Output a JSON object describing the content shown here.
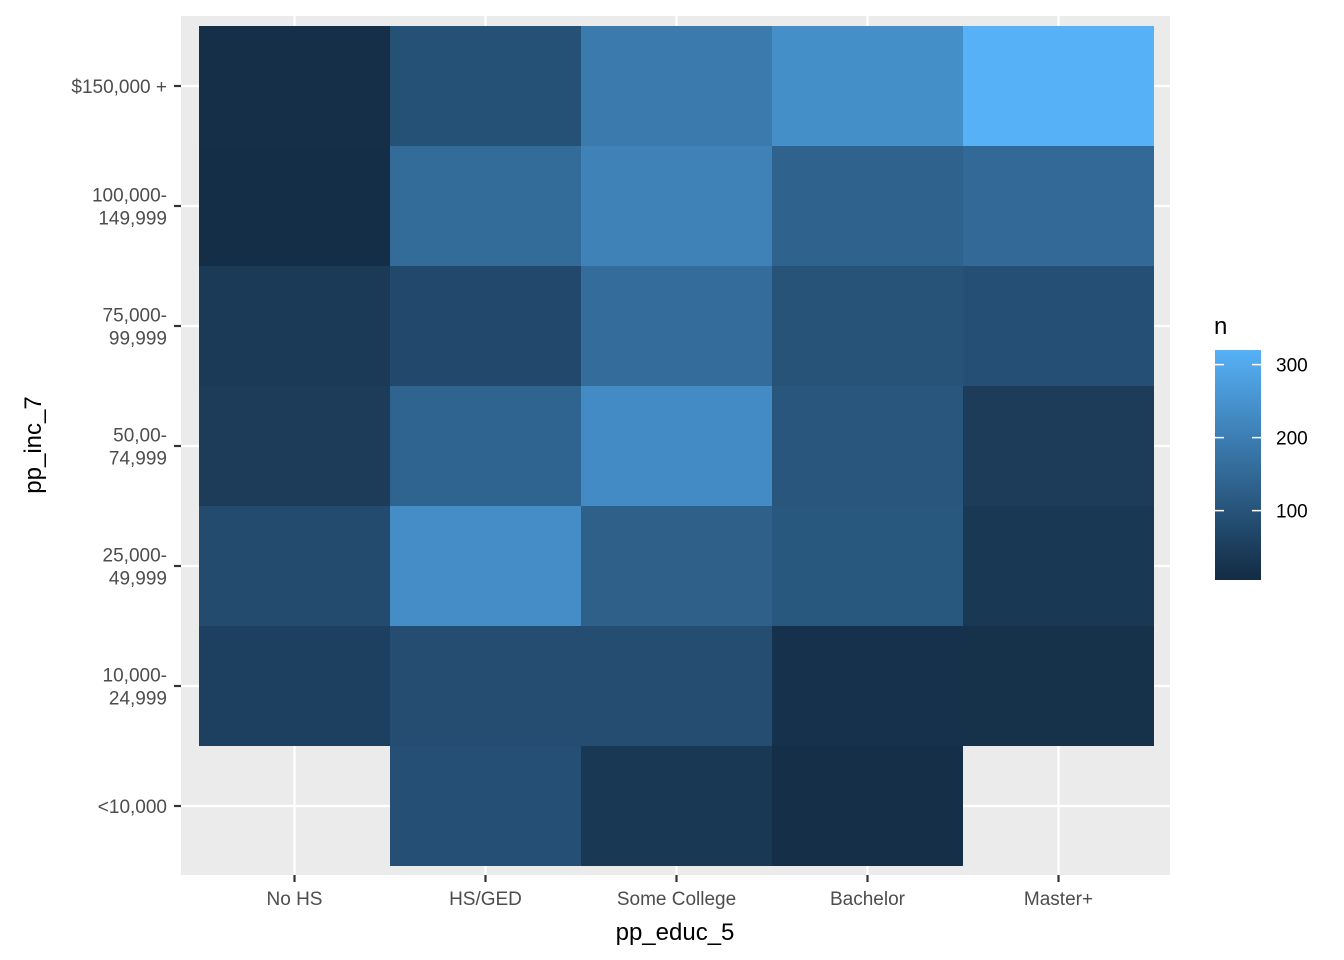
{
  "chart_data": {
    "type": "heatmap",
    "title": "",
    "xlabel": "pp_educ_5",
    "ylabel": "pp_inc_7",
    "x_categories": [
      "No HS",
      "HS/GED",
      "Some College",
      "Bachelor",
      "Master+"
    ],
    "y_categories": [
      "<10,000",
      "10,000-\n24,999",
      "25,000-\n49,999",
      "50,00-\n74,999",
      "75,000-\n99,999",
      "100,000-\n149,999",
      "$150,000 +"
    ],
    "cells": [
      {
        "x": "No HS",
        "y": "$150,000 +",
        "n": 15
      },
      {
        "x": "HS/GED",
        "y": "$150,000 +",
        "n": 95
      },
      {
        "x": "Some College",
        "y": "$150,000 +",
        "n": 190
      },
      {
        "x": "Bachelor",
        "y": "$150,000 +",
        "n": 240
      },
      {
        "x": "Master+",
        "y": "$150,000 +",
        "n": 320
      },
      {
        "x": "No HS",
        "y": "100,000-\n149,999",
        "n": 12
      },
      {
        "x": "HS/GED",
        "y": "100,000-\n149,999",
        "n": 155
      },
      {
        "x": "Some College",
        "y": "100,000-\n149,999",
        "n": 210
      },
      {
        "x": "Bachelor",
        "y": "100,000-\n149,999",
        "n": 135
      },
      {
        "x": "Master+",
        "y": "100,000-\n149,999",
        "n": 150
      },
      {
        "x": "No HS",
        "y": "75,000-\n99,999",
        "n": 40
      },
      {
        "x": "HS/GED",
        "y": "75,000-\n99,999",
        "n": 75
      },
      {
        "x": "Some College",
        "y": "75,000-\n99,999",
        "n": 160
      },
      {
        "x": "Bachelor",
        "y": "75,000-\n99,999",
        "n": 100
      },
      {
        "x": "Master+",
        "y": "75,000-\n99,999",
        "n": 90
      },
      {
        "x": "No HS",
        "y": "50,00-\n74,999",
        "n": 45
      },
      {
        "x": "HS/GED",
        "y": "50,00-\n74,999",
        "n": 140
      },
      {
        "x": "Some College",
        "y": "50,00-\n74,999",
        "n": 230
      },
      {
        "x": "Bachelor",
        "y": "50,00-\n74,999",
        "n": 105
      },
      {
        "x": "Master+",
        "y": "50,00-\n74,999",
        "n": 45
      },
      {
        "x": "No HS",
        "y": "25,000-\n49,999",
        "n": 80
      },
      {
        "x": "HS/GED",
        "y": "25,000-\n49,999",
        "n": 235
      },
      {
        "x": "Some College",
        "y": "25,000-\n49,999",
        "n": 130
      },
      {
        "x": "Bachelor",
        "y": "25,000-\n49,999",
        "n": 110
      },
      {
        "x": "Master+",
        "y": "25,000-\n49,999",
        "n": 35
      },
      {
        "x": "No HS",
        "y": "10,000-\n24,999",
        "n": 55
      },
      {
        "x": "HS/GED",
        "y": "10,000-\n24,999",
        "n": 85
      },
      {
        "x": "Some College",
        "y": "10,000-\n24,999",
        "n": 85
      },
      {
        "x": "Bachelor",
        "y": "10,000-\n24,999",
        "n": 20
      },
      {
        "x": "Master+",
        "y": "10,000-\n24,999",
        "n": 18
      },
      {
        "x": "HS/GED",
        "y": "<10,000",
        "n": 90
      },
      {
        "x": "Some College",
        "y": "<10,000",
        "n": 35
      },
      {
        "x": "Bachelor",
        "y": "<10,000",
        "n": 15
      }
    ],
    "color_scale": {
      "low_color": "#132B43",
      "high_color": "#56B1F7",
      "min": 5,
      "max": 320
    },
    "legend": {
      "title": "n",
      "breaks": [
        100,
        200,
        300
      ],
      "position": "right"
    },
    "colors": {
      "panel_background": "#EBEBEB",
      "grid": "#FFFFFF"
    },
    "grid": true
  }
}
